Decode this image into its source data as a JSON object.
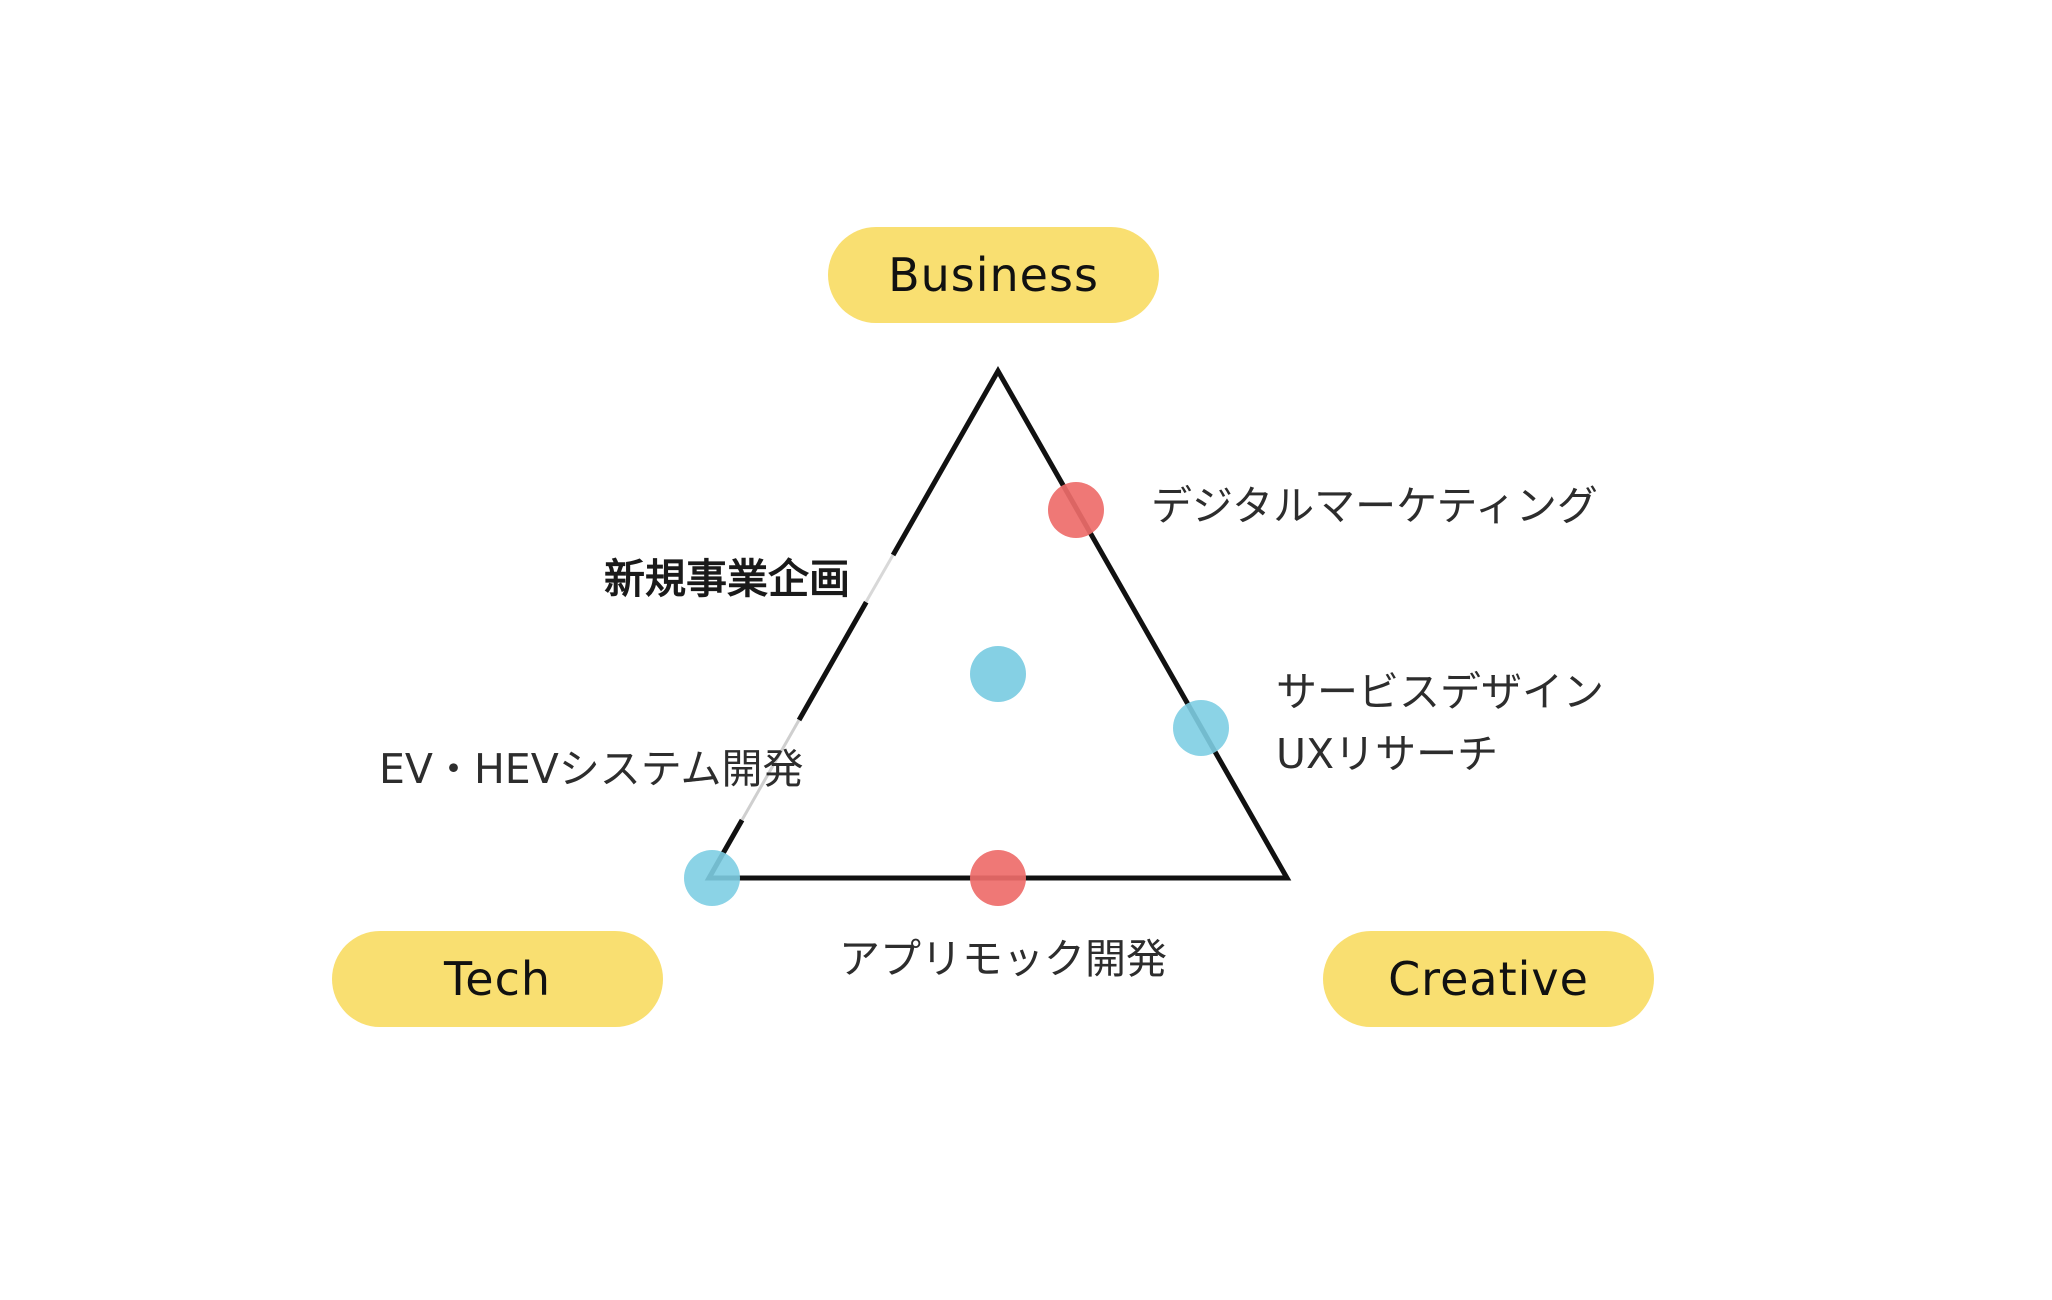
{
  "colors": {
    "pill_fill": "#F9DF71",
    "triangle_stroke": "#111111",
    "dot_red": "#EE6C6A",
    "dot_blue": "#7ECEE3",
    "background": "#FFFFFF"
  },
  "axes": {
    "business": "Business",
    "tech": "Tech",
    "creative": "Creative"
  },
  "labels": {
    "digital_marketing": "デジタルマーケティング",
    "new_business": "新規事業企画",
    "service_design": "サービスデザイン",
    "ux_research": "UXリサーチ",
    "ev_system": "EV・HEVシステム開発",
    "app_mock": "アプリモック開発"
  },
  "dots": [
    {
      "id": "digital-marketing-dot",
      "color": "red"
    },
    {
      "id": "center-dot",
      "color": "blue"
    },
    {
      "id": "service-design-dot",
      "color": "blue"
    },
    {
      "id": "tech-corner-dot",
      "color": "blue"
    },
    {
      "id": "app-mock-dot",
      "color": "red"
    }
  ]
}
